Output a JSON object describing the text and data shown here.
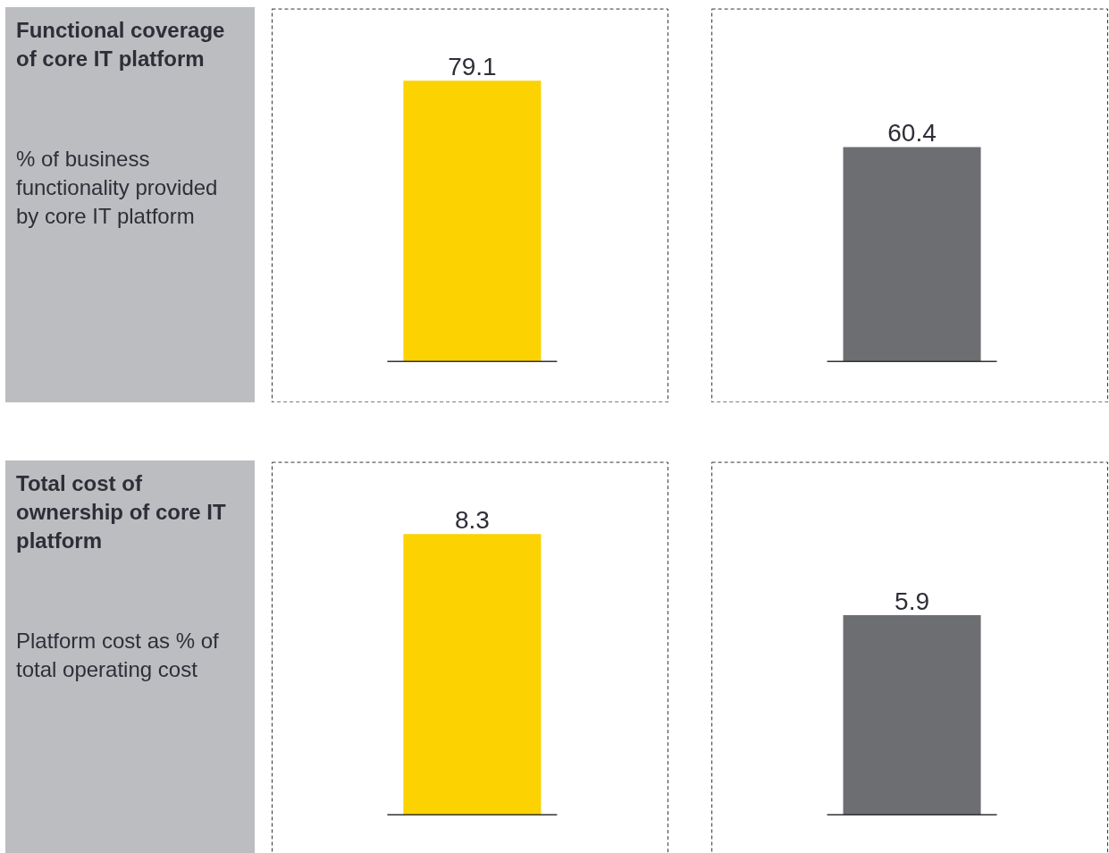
{
  "chart_data": [
    {
      "type": "other",
      "title": "Functional coverage of core IT platform",
      "subtitle": "% of business functionality provided by core IT platform"
    },
    {
      "type": "bar",
      "categories": [
        null,
        null
      ],
      "values": [
        79.1,
        60.4
      ],
      "colors": [
        "#fcd200",
        "#6d6e71"
      ],
      "data_labels": true
    },
    {
      "type": "other",
      "title": "Total cost of ownership of core IT platform",
      "subtitle": "Platform cost as % of total operating cost"
    },
    {
      "type": "bar",
      "categories": [
        null,
        null
      ],
      "values": [
        8.3,
        5.9
      ],
      "colors": [
        "#fcd200",
        "#6d6e71"
      ],
      "data_labels": true
    }
  ]
}
